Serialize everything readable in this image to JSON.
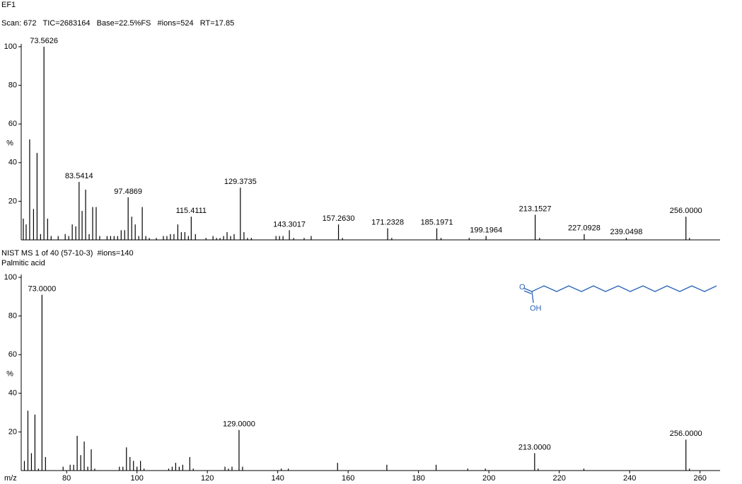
{
  "chart_data": [
    {
      "type": "bar",
      "title": "EF1",
      "subtitle": "Scan: 672   TIC=2683164   Base=22.5%FS   #ions=524   RT=17.85",
      "y_label": "%",
      "color": "#000000",
      "xlim": [
        67.1,
        265.7
      ],
      "ylim": [
        0,
        100
      ],
      "yticks": [
        20,
        40,
        60,
        80,
        100
      ],
      "x": [
        67.7,
        68.5,
        69.5,
        70.6,
        71.6,
        72.6,
        73.5626,
        74.6,
        75.6,
        77.6,
        79.6,
        80.6,
        81.6,
        82.6,
        83.5414,
        84.4,
        85.4,
        86.4,
        87.4,
        88.4,
        89.4,
        91.5,
        92.5,
        93.5,
        94.5,
        95.5,
        96.5,
        97.4869,
        98.5,
        99.5,
        100.5,
        101.5,
        102.5,
        103.5,
        105.5,
        107.5,
        108.5,
        109.5,
        110.5,
        111.6,
        112.6,
        113.6,
        114.6,
        115.4111,
        116.6,
        119.6,
        121.6,
        122.6,
        123.6,
        124.6,
        125.6,
        126.6,
        127.6,
        129.3735,
        130.4,
        131.4,
        132.5,
        139.5,
        140.5,
        141.5,
        143.3017,
        144.5,
        147.5,
        149.5,
        157.263,
        158.4,
        171.2328,
        172.4,
        185.1971,
        186.4,
        194.4,
        199.1964,
        213.1527,
        214.4,
        227.0928,
        239.0498,
        256,
        257
      ],
      "values": [
        11,
        8,
        52,
        16,
        45,
        3,
        100,
        11,
        2,
        2,
        3,
        2,
        8,
        7,
        30,
        15,
        26,
        3,
        17,
        17,
        2,
        2,
        2,
        2,
        2,
        5,
        5,
        22,
        12,
        8,
        2,
        17,
        2,
        1,
        1,
        2,
        2,
        3,
        3,
        8,
        4,
        4,
        2,
        12,
        3,
        1,
        2,
        1,
        1,
        2,
        4,
        2,
        3,
        27,
        4,
        1,
        1,
        2,
        2,
        2,
        5,
        1,
        1,
        2,
        8,
        1,
        6,
        1,
        6,
        1,
        1,
        2,
        13,
        1,
        3,
        1,
        12,
        1
      ],
      "peak_labels": [
        null,
        null,
        null,
        null,
        null,
        null,
        "73.5626",
        null,
        null,
        null,
        null,
        null,
        null,
        null,
        "83.5414",
        null,
        null,
        null,
        null,
        null,
        null,
        null,
        null,
        null,
        null,
        null,
        null,
        "97.4869",
        null,
        null,
        null,
        null,
        null,
        null,
        null,
        null,
        null,
        null,
        null,
        null,
        null,
        null,
        null,
        "115.4111",
        null,
        null,
        null,
        null,
        null,
        null,
        null,
        null,
        null,
        "129.3735",
        null,
        null,
        null,
        null,
        null,
        null,
        "143.3017",
        null,
        null,
        null,
        "157.2630",
        null,
        "171.2328",
        null,
        "185.1971",
        null,
        null,
        "199.1964",
        "213.1527",
        null,
        "227.0928",
        "239.0498",
        "256.0000",
        null
      ]
    },
    {
      "type": "bar",
      "title": "NIST MS 1 of 40 (57-10-3)  #ions=140",
      "subtitle": "Palmitic acid",
      "y_label": "%",
      "x_label": "m/z",
      "color": "#000000",
      "structure_atoms": [
        "O",
        "OH"
      ],
      "xlim": [
        67.1,
        265.7
      ],
      "xticks": [
        80,
        100,
        120,
        140,
        160,
        180,
        200,
        220,
        240,
        260
      ],
      "ylim": [
        0,
        100
      ],
      "yticks": [
        20,
        40,
        60,
        80,
        100
      ],
      "x": [
        68,
        69,
        70,
        71,
        72,
        73,
        74,
        79,
        81,
        82,
        83,
        84,
        85,
        86,
        87,
        88,
        95,
        96,
        97,
        98,
        99,
        100,
        101,
        102,
        109,
        110,
        111,
        112,
        113,
        115,
        116,
        125,
        126,
        127,
        129,
        130,
        141,
        143,
        157,
        171,
        185,
        194,
        199,
        213,
        214,
        227,
        256,
        257
      ],
      "values": [
        5,
        31,
        9,
        29,
        1,
        91,
        7,
        2,
        3,
        3,
        18,
        8,
        15,
        2,
        11,
        1,
        2,
        2,
        12,
        7,
        5,
        2,
        5,
        1,
        1,
        2,
        4,
        2,
        3,
        7,
        1,
        2,
        1,
        2,
        21,
        2,
        1,
        1,
        4,
        3,
        3,
        1,
        1,
        9,
        1,
        1,
        16,
        1
      ],
      "peak_labels": [
        null,
        null,
        null,
        null,
        null,
        "73.0000",
        null,
        null,
        null,
        null,
        null,
        null,
        null,
        null,
        null,
        null,
        null,
        null,
        null,
        null,
        null,
        null,
        null,
        null,
        null,
        null,
        null,
        null,
        null,
        null,
        null,
        null,
        null,
        null,
        "129.0000",
        null,
        null,
        null,
        null,
        null,
        null,
        null,
        null,
        "213.0000",
        null,
        null,
        "256.0000",
        null
      ]
    }
  ]
}
